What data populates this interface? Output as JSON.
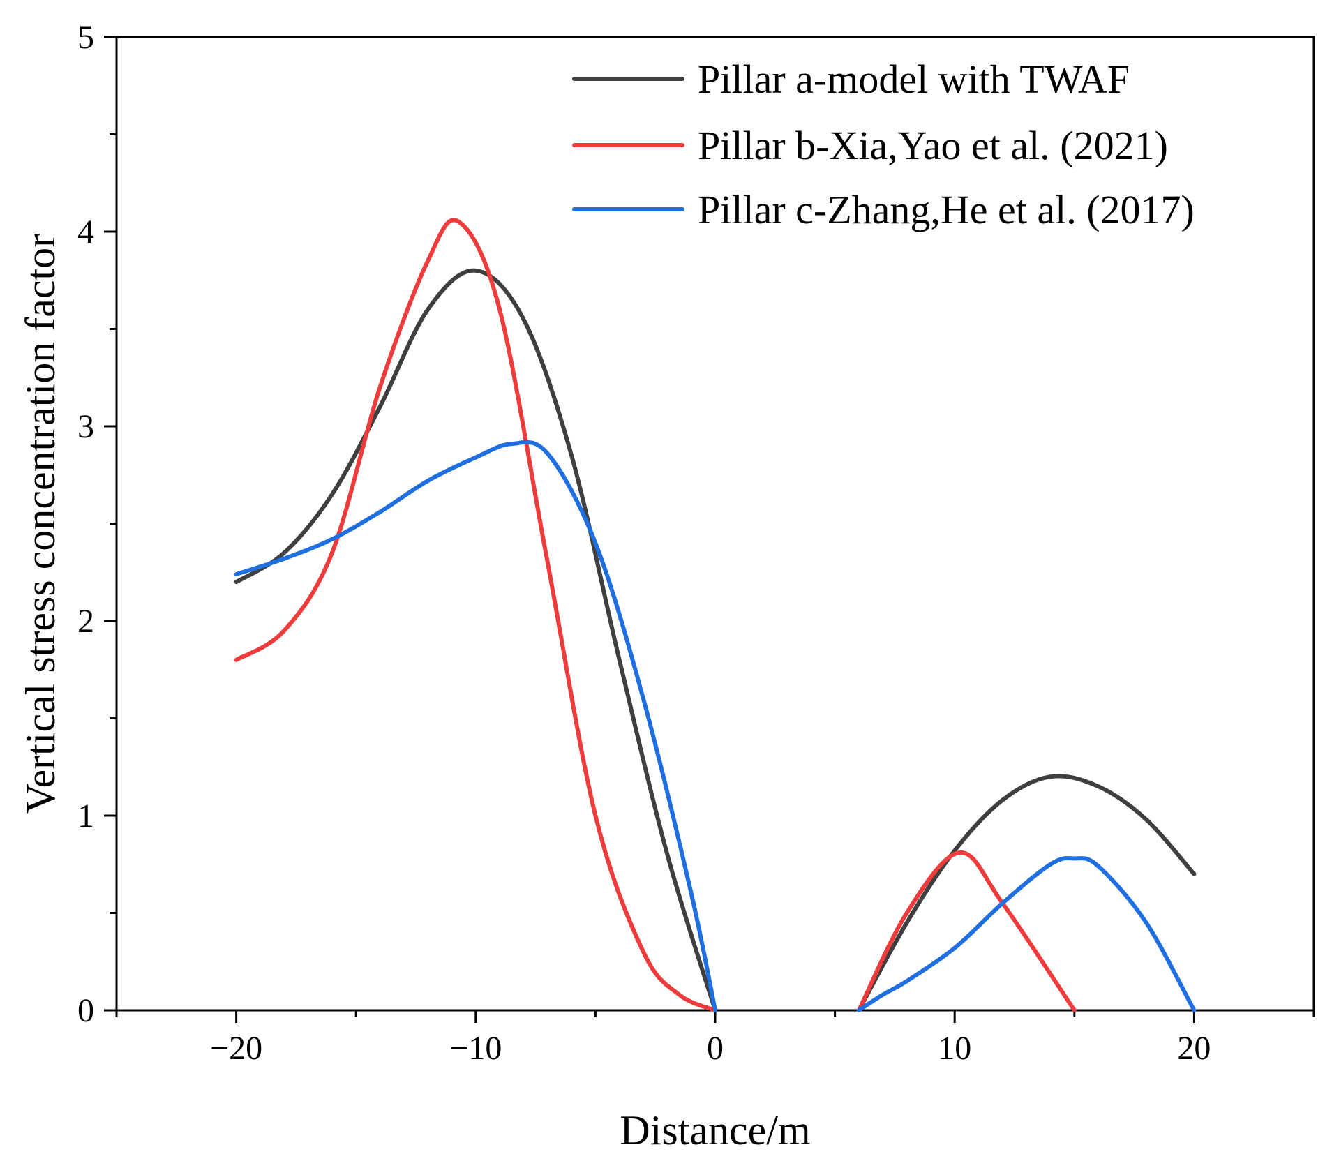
{
  "chart_data": {
    "type": "line",
    "title": "",
    "xlabel": "Distance/m",
    "ylabel": "Vertical stress concentration factor",
    "xlim": [
      -25,
      25
    ],
    "ylim": [
      0,
      5
    ],
    "xticks": [
      -20,
      -10,
      0,
      10,
      20
    ],
    "xtick_labels": [
      "−20",
      "−10",
      "0",
      "10",
      "20"
    ],
    "yticks": [
      0,
      1,
      2,
      3,
      4,
      5
    ],
    "ytick_labels": [
      "0",
      "1",
      "2",
      "3",
      "4",
      "5"
    ],
    "x_minor_step": 5,
    "y_minor_step": 0.5,
    "grid": false,
    "legend_position": "top-right",
    "series": [
      {
        "name": "Pillar a-model with TWAF",
        "color": "#3f3f3f",
        "segments": [
          [
            [
              -20,
              2.2
            ],
            [
              -18,
              2.35
            ],
            [
              -16,
              2.65
            ],
            [
              -14,
              3.1
            ],
            [
              -12,
              3.6
            ],
            [
              -10,
              3.8
            ],
            [
              -8,
              3.55
            ],
            [
              -6,
              2.85
            ],
            [
              -4,
              1.8
            ],
            [
              -2,
              0.8
            ],
            [
              0,
              0.0
            ]
          ],
          [
            [
              6,
              0.0
            ],
            [
              8,
              0.45
            ],
            [
              10,
              0.82
            ],
            [
              12,
              1.08
            ],
            [
              14,
              1.2
            ],
            [
              16,
              1.15
            ],
            [
              18,
              0.98
            ],
            [
              20,
              0.7
            ]
          ]
        ]
      },
      {
        "name": "Pillar b-Xia,Yao et al. (2021)",
        "color": "#ee3b3b",
        "segments": [
          [
            [
              -20,
              1.8
            ],
            [
              -18,
              1.95
            ],
            [
              -16,
              2.35
            ],
            [
              -14,
              3.2
            ],
            [
              -12,
              3.85
            ],
            [
              -10.7,
              4.05
            ],
            [
              -9,
              3.6
            ],
            [
              -7,
              2.3
            ],
            [
              -5,
              1.0
            ],
            [
              -3,
              0.3
            ],
            [
              -1.5,
              0.08
            ],
            [
              0,
              0.0
            ]
          ],
          [
            [
              6,
              0.0
            ],
            [
              8,
              0.5
            ],
            [
              10.2,
              0.81
            ],
            [
              12,
              0.55
            ],
            [
              15,
              0.0
            ]
          ]
        ]
      },
      {
        "name": "Pillar c-Zhang,He et al. (2017)",
        "color": "#1f6fe0",
        "segments": [
          [
            [
              -20,
              2.24
            ],
            [
              -18,
              2.32
            ],
            [
              -16,
              2.42
            ],
            [
              -14,
              2.56
            ],
            [
              -12,
              2.72
            ],
            [
              -10,
              2.84
            ],
            [
              -8.5,
              2.91
            ],
            [
              -7,
              2.86
            ],
            [
              -5,
              2.4
            ],
            [
              -3,
              1.6
            ],
            [
              -1,
              0.6
            ],
            [
              0,
              0.0
            ]
          ],
          [
            [
              6,
              0.0
            ],
            [
              7,
              0.08
            ],
            [
              8,
              0.15
            ],
            [
              10,
              0.32
            ],
            [
              12,
              0.55
            ],
            [
              14,
              0.75
            ],
            [
              15,
              0.78
            ],
            [
              16,
              0.74
            ],
            [
              18,
              0.45
            ],
            [
              20,
              0.0
            ]
          ]
        ]
      }
    ]
  }
}
